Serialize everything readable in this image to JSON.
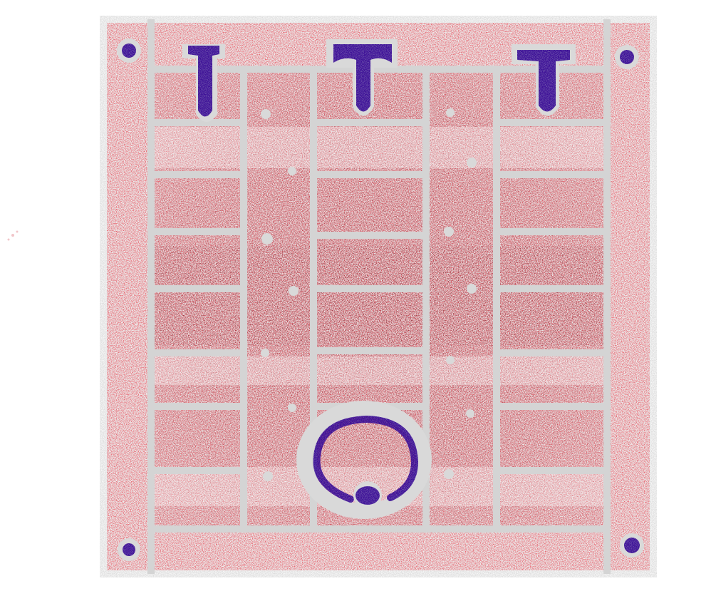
{
  "image": {
    "kind": "stippled illustration of a square board",
    "colors": {
      "background": "#ffffff",
      "grout": "#d9d9d9",
      "border_red": "#e8414f",
      "border_red_light": "#f07880",
      "field_maroon": "#8e1e2a",
      "field_maroon_light": "#b2505a",
      "accent_indigo": "#3a0f96"
    },
    "elements": {
      "corner_dots": 4,
      "top_markers": 3,
      "bottom_ring": 1
    }
  }
}
